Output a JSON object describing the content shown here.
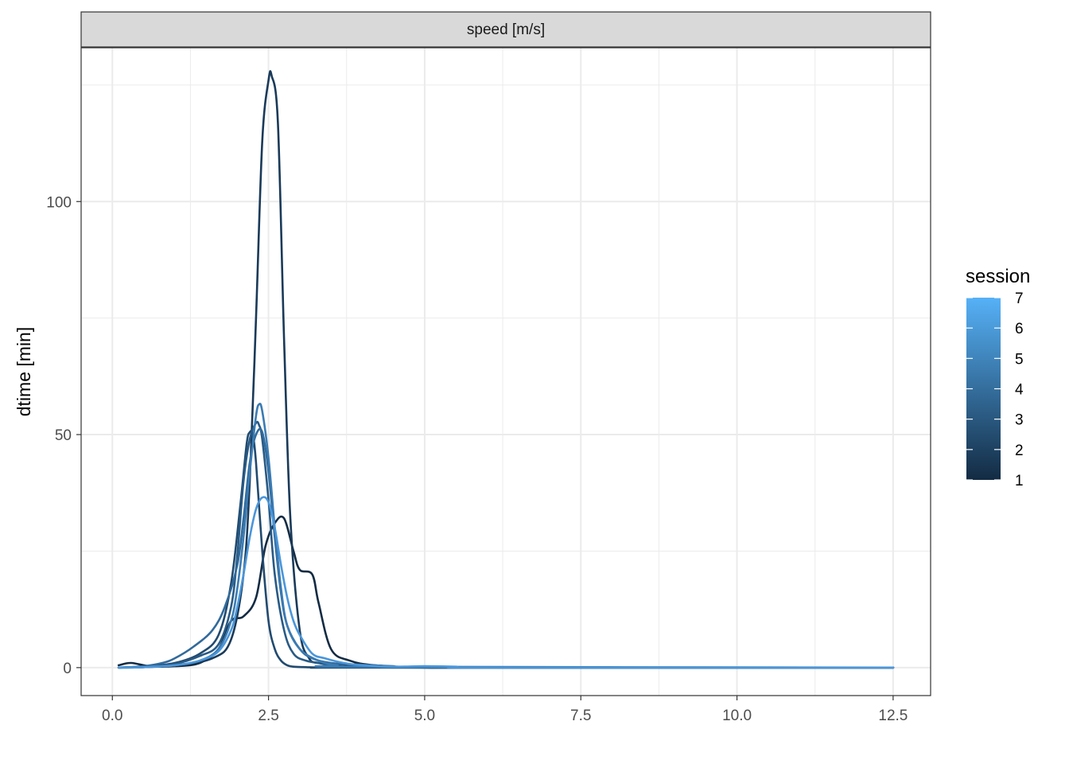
{
  "chart_data": {
    "type": "line",
    "facet_label": "speed [m/s]",
    "xlabel": "",
    "ylabel": "dtime [min]",
    "xlim": [
      -0.5,
      13.1
    ],
    "ylim": [
      -6,
      133
    ],
    "x_ticks": [
      0.0,
      2.5,
      5.0,
      7.5,
      10.0,
      12.5
    ],
    "x_tick_labels": [
      "0.0",
      "2.5",
      "5.0",
      "7.5",
      "10.0",
      "12.5"
    ],
    "y_ticks": [
      0,
      50,
      100
    ],
    "y_tick_labels": [
      "0",
      "50",
      "100"
    ],
    "grid": true,
    "legend": {
      "title": "session",
      "position": "right",
      "labels": [
        "7",
        "6",
        "5",
        "4",
        "3",
        "2",
        "1"
      ],
      "color_low": "#132B43",
      "color_high": "#56B1F7"
    },
    "series": [
      {
        "name": "1",
        "color": "#132B43",
        "x": [
          0.1,
          0.3,
          0.6,
          1.0,
          1.4,
          1.7,
          1.9,
          2.1,
          2.3,
          2.45,
          2.6,
          2.75,
          2.9,
          3.0,
          3.2,
          3.3,
          3.5,
          3.8,
          4.2,
          5.0,
          6.0,
          12.5
        ],
        "y": [
          0.5,
          1.0,
          0.3,
          0.3,
          1.0,
          4.0,
          10.0,
          11.0,
          15.0,
          26.0,
          31.0,
          32.0,
          25.0,
          21.0,
          20.0,
          14.0,
          4.0,
          1.5,
          0.5,
          0.0,
          0.0,
          0.0
        ]
      },
      {
        "name": "2",
        "color": "#1A3A59",
        "x": [
          0.1,
          0.5,
          1.0,
          1.6,
          1.9,
          2.1,
          2.2,
          2.3,
          2.4,
          2.5,
          2.55,
          2.65,
          2.75,
          2.85,
          3.0,
          3.15,
          3.3,
          3.6,
          4.0,
          5.0,
          12.5
        ],
        "y": [
          0.0,
          0.1,
          0.5,
          2.0,
          6.0,
          20.0,
          40.0,
          75.0,
          113.0,
          126.0,
          127.0,
          117.0,
          70.0,
          32.0,
          8.0,
          2.0,
          1.0,
          0.5,
          0.2,
          0.0,
          0.0
        ]
      },
      {
        "name": "3",
        "color": "#214A6F",
        "x": [
          0.1,
          0.5,
          1.0,
          1.4,
          1.7,
          1.9,
          2.05,
          2.15,
          2.2,
          2.25,
          2.3,
          2.4,
          2.5,
          2.6,
          2.7,
          2.8,
          2.9,
          3.1,
          3.4,
          4.0,
          12.5
        ],
        "y": [
          0.0,
          0.2,
          1.0,
          3.0,
          7.0,
          18.0,
          35.0,
          48.0,
          50.5,
          50.0,
          44.0,
          25.0,
          10.0,
          4.0,
          1.5,
          0.5,
          0.2,
          0.1,
          0.0,
          0.0,
          0.0
        ]
      },
      {
        "name": "4",
        "color": "#285A85",
        "x": [
          0.1,
          0.5,
          1.0,
          1.4,
          1.7,
          1.9,
          2.0,
          2.1,
          2.2,
          2.3,
          2.35,
          2.4,
          2.5,
          2.6,
          2.75,
          2.9,
          3.1,
          3.4,
          3.7,
          4.0,
          12.5
        ],
        "y": [
          0.0,
          0.2,
          0.8,
          2.5,
          5.0,
          13.0,
          24.0,
          40.0,
          49.0,
          52.5,
          52.0,
          49.0,
          36.0,
          20.0,
          8.0,
          3.0,
          1.5,
          0.8,
          0.3,
          0.1,
          0.0
        ]
      },
      {
        "name": "5",
        "color": "#316A9B",
        "x": [
          0.1,
          0.5,
          0.8,
          1.0,
          1.3,
          1.6,
          1.8,
          2.0,
          2.1,
          2.2,
          2.3,
          2.4,
          2.5,
          2.6,
          2.7,
          2.8,
          3.0,
          3.2,
          3.5,
          4.0,
          4.5,
          5.0,
          12.5
        ],
        "y": [
          0.0,
          0.3,
          1.0,
          2.0,
          4.5,
          8.0,
          13.0,
          22.0,
          32.0,
          44.0,
          50.0,
          50.5,
          42.0,
          28.0,
          16.0,
          9.0,
          4.0,
          2.0,
          1.0,
          0.6,
          0.3,
          0.0,
          0.0
        ]
      },
      {
        "name": "6",
        "color": "#3A7BB3",
        "x": [
          0.1,
          0.5,
          1.0,
          1.4,
          1.7,
          1.9,
          2.0,
          2.1,
          2.2,
          2.3,
          2.35,
          2.4,
          2.5,
          2.6,
          2.7,
          2.8,
          3.0,
          3.3,
          3.6,
          4.0,
          12.5
        ],
        "y": [
          0.0,
          0.1,
          0.5,
          1.5,
          4.0,
          10.0,
          17.0,
          28.0,
          42.0,
          54.0,
          56.5,
          55.0,
          45.0,
          30.0,
          17.0,
          9.0,
          4.0,
          1.5,
          0.5,
          0.2,
          0.0
        ]
      },
      {
        "name": "7",
        "color": "#4A96DA",
        "x": [
          0.1,
          0.5,
          1.0,
          1.4,
          1.7,
          1.9,
          2.0,
          2.1,
          2.2,
          2.3,
          2.4,
          2.5,
          2.6,
          2.7,
          2.8,
          2.9,
          3.0,
          3.2,
          3.4,
          3.7,
          4.0,
          4.5,
          5.0,
          5.5,
          6.0,
          12.5
        ],
        "y": [
          0.0,
          0.1,
          0.5,
          1.5,
          3.5,
          8.0,
          13.0,
          20.0,
          28.0,
          34.0,
          36.5,
          35.5,
          30.0,
          22.0,
          15.0,
          10.0,
          7.0,
          3.0,
          2.0,
          1.0,
          0.5,
          0.2,
          0.3,
          0.2,
          0.0,
          0.0
        ]
      }
    ]
  }
}
